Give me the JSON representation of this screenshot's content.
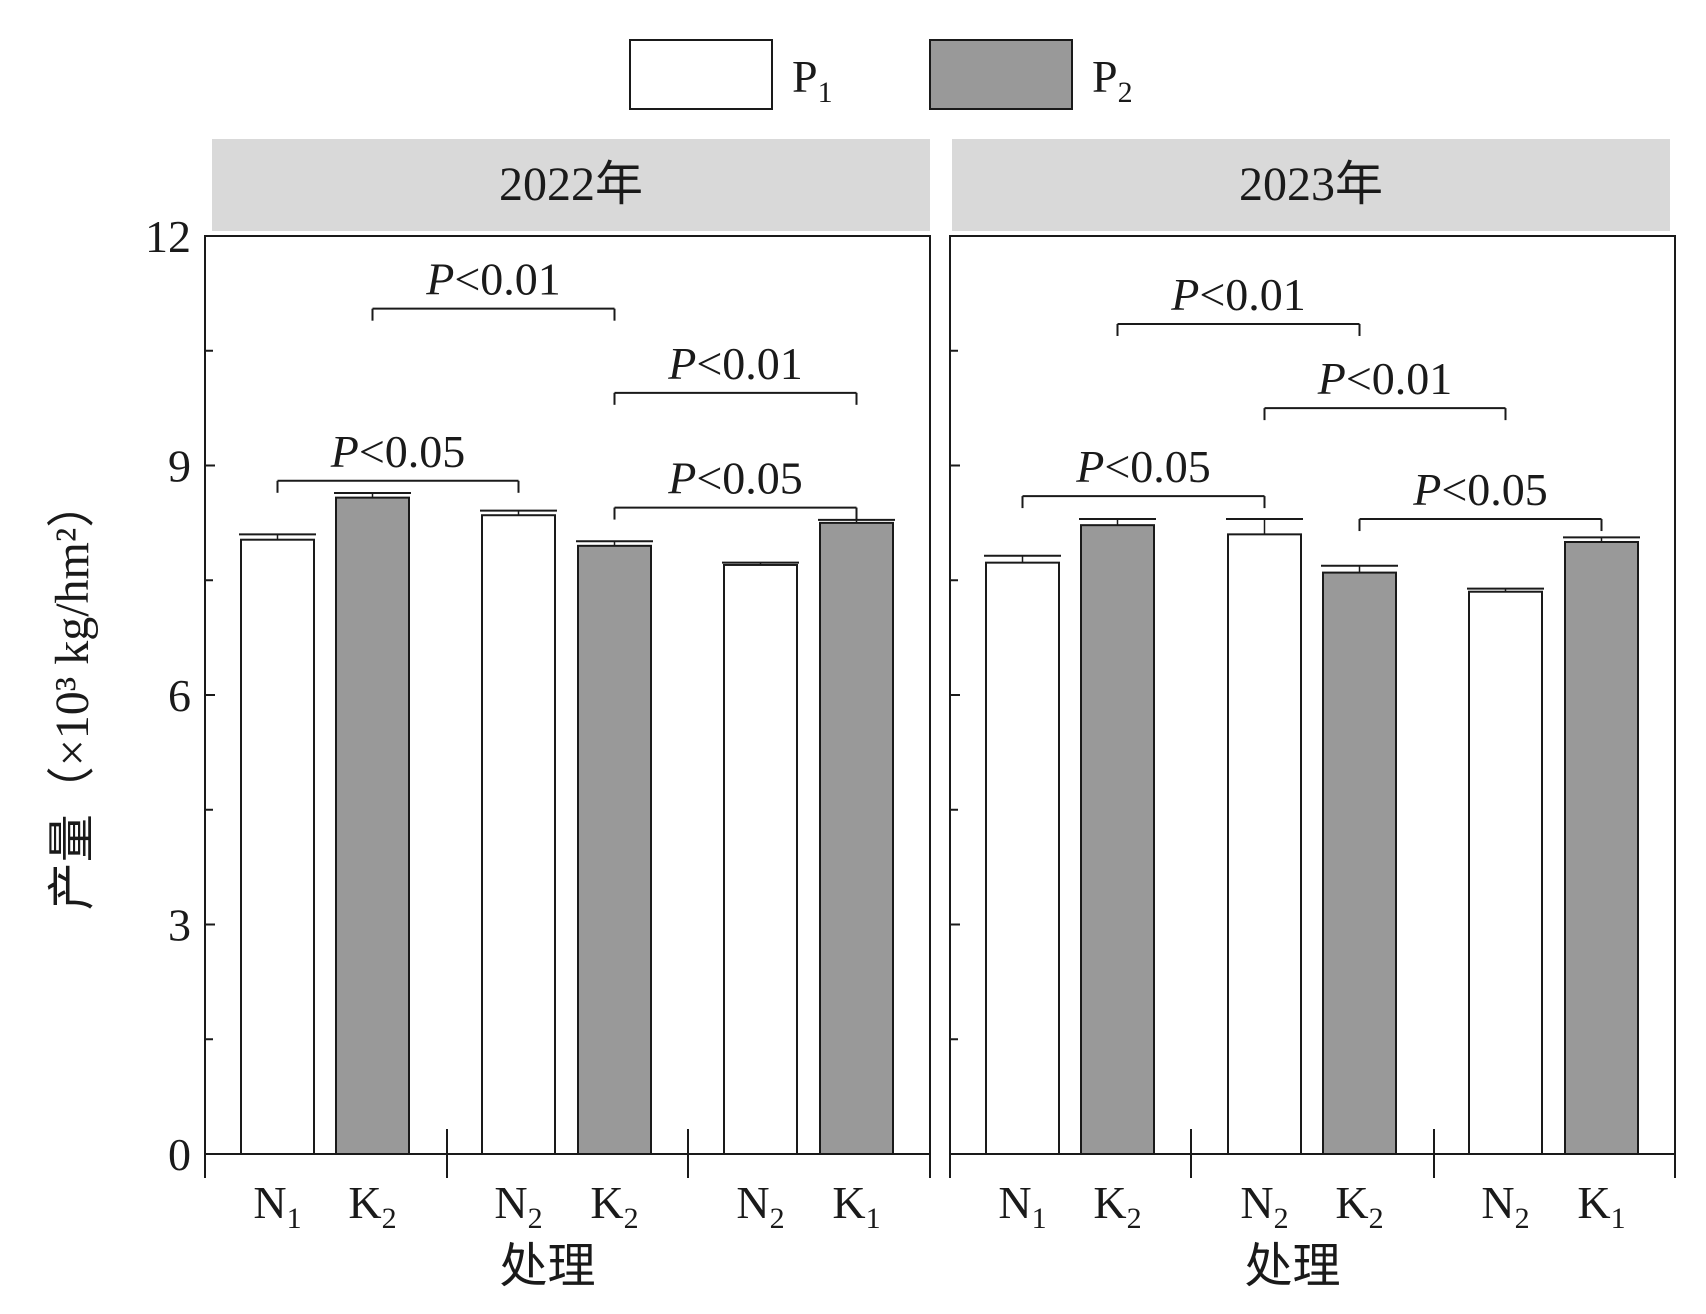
{
  "colors": {
    "p1_fill": "#ffffff",
    "p2_fill": "#999999",
    "strip_bg": "#d9d9d9",
    "stroke": "#1a1a1a"
  },
  "chart_data": {
    "type": "bar",
    "ylabel": "产量（×10³ kg/hm²）",
    "xlabel": "处理",
    "ylim": [
      0,
      12
    ],
    "yticks": [
      0,
      3,
      6,
      9,
      12
    ],
    "legend_position": "top-center",
    "series": [
      {
        "name": "P",
        "sub": "1",
        "fill": "#ffffff"
      },
      {
        "name": "P",
        "sub": "2",
        "fill": "#999999"
      }
    ],
    "panels": [
      {
        "title": "2022年",
        "groups": [
          {
            "bars": [
              {
                "main": "N",
                "sub": "1",
                "value": 8.03,
                "err": 0.07
              },
              {
                "main": "K",
                "sub": "2",
                "value": 8.58,
                "err": 0.06
              }
            ]
          },
          {
            "bars": [
              {
                "main": "N",
                "sub": "2",
                "value": 8.35,
                "err": 0.06
              },
              {
                "main": "K",
                "sub": "2",
                "value": 7.95,
                "err": 0.06
              }
            ]
          },
          {
            "bars": [
              {
                "main": "N",
                "sub": "2",
                "value": 7.7,
                "err": 0.03
              },
              {
                "main": "K",
                "sub": "1",
                "value": 8.25,
                "err": 0.04
              }
            ]
          }
        ],
        "significance": [
          {
            "from_bar": 1,
            "to_bar": 3,
            "y": 11.05,
            "p": "P",
            "label": "<0.01"
          },
          {
            "from_bar": 3,
            "to_bar": 5,
            "y": 9.95,
            "p": "P",
            "label": "<0.01"
          },
          {
            "from_bar": 0,
            "to_bar": 2,
            "y": 8.8,
            "p": "P",
            "label": "<0.05"
          },
          {
            "from_bar": 3,
            "to_bar": 5,
            "y": 8.45,
            "p": "P",
            "label": "<0.05"
          }
        ]
      },
      {
        "title": "2023年",
        "groups": [
          {
            "bars": [
              {
                "main": "N",
                "sub": "1",
                "value": 7.73,
                "err": 0.09
              },
              {
                "main": "K",
                "sub": "2",
                "value": 8.22,
                "err": 0.08
              }
            ]
          },
          {
            "bars": [
              {
                "main": "N",
                "sub": "2",
                "value": 8.1,
                "err": 0.2
              },
              {
                "main": "K",
                "sub": "2",
                "value": 7.6,
                "err": 0.09
              }
            ]
          },
          {
            "bars": [
              {
                "main": "N",
                "sub": "2",
                "value": 7.35,
                "err": 0.04
              },
              {
                "main": "K",
                "sub": "1",
                "value": 8.0,
                "err": 0.06
              }
            ]
          }
        ],
        "significance": [
          {
            "from_bar": 1,
            "to_bar": 3,
            "y": 10.85,
            "p": "P",
            "label": "<0.01"
          },
          {
            "from_bar": 2,
            "to_bar": 4,
            "y": 9.75,
            "p": "P",
            "label": "<0.01"
          },
          {
            "from_bar": 0,
            "to_bar": 2,
            "y": 8.6,
            "p": "P",
            "label": "<0.05"
          },
          {
            "from_bar": 3,
            "to_bar": 5,
            "y": 8.3,
            "p": "P",
            "label": "<0.05"
          }
        ]
      }
    ]
  }
}
